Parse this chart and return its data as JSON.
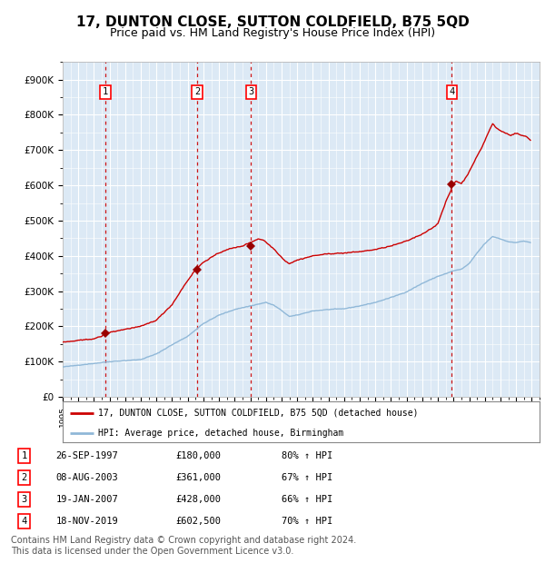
{
  "title": "17, DUNTON CLOSE, SUTTON COLDFIELD, B75 5QD",
  "subtitle": "Price paid vs. HM Land Registry's House Price Index (HPI)",
  "title_fontsize": 11,
  "subtitle_fontsize": 9,
  "background_color": "#dce9f5",
  "plot_bg_color": "#dce9f5",
  "fig_bg_color": "#ffffff",
  "grid_color": "#ffffff",
  "ylim": [
    0,
    950000
  ],
  "yticks": [
    0,
    100000,
    200000,
    300000,
    400000,
    500000,
    600000,
    700000,
    800000,
    900000
  ],
  "ytick_labels": [
    "£0",
    "£100K",
    "£200K",
    "£300K",
    "£400K",
    "£500K",
    "£600K",
    "£700K",
    "£800K",
    "£900K"
  ],
  "hpi_line_color": "#90b8d8",
  "price_line_color": "#cc0000",
  "marker_color": "#990000",
  "vline_color": "#cc0000",
  "purchase_dates": [
    1997.74,
    2003.6,
    2007.05,
    2019.89
  ],
  "purchase_prices": [
    180000,
    361000,
    428000,
    602500
  ],
  "purchase_labels": [
    "1",
    "2",
    "3",
    "4"
  ],
  "legend_line1": "17, DUNTON CLOSE, SUTTON COLDFIELD, B75 5QD (detached house)",
  "legend_line2": "HPI: Average price, detached house, Birmingham",
  "table_data": [
    [
      "1",
      "26-SEP-1997",
      "£180,000",
      "80% ↑ HPI"
    ],
    [
      "2",
      "08-AUG-2003",
      "£361,000",
      "67% ↑ HPI"
    ],
    [
      "3",
      "19-JAN-2007",
      "£428,000",
      "66% ↑ HPI"
    ],
    [
      "4",
      "18-NOV-2019",
      "£602,500",
      "70% ↑ HPI"
    ]
  ],
  "footnote": "Contains HM Land Registry data © Crown copyright and database right 2024.\nThis data is licensed under the Open Government Licence v3.0.",
  "footnote_fontsize": 7
}
